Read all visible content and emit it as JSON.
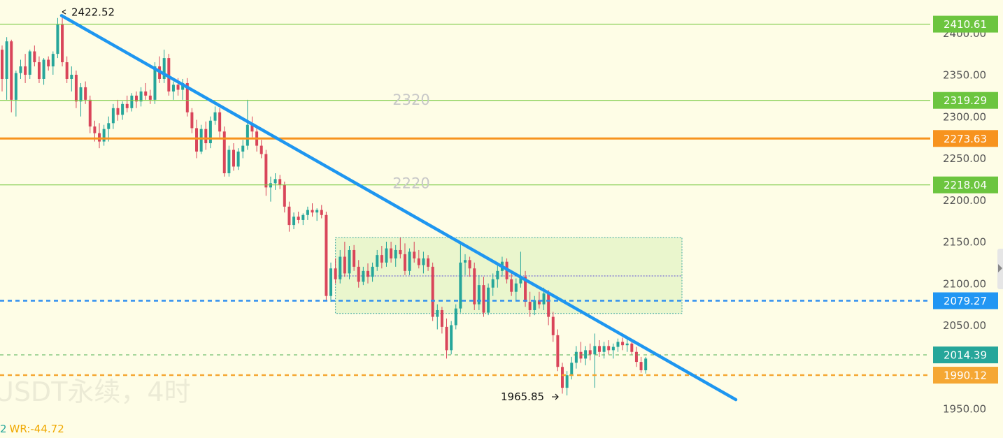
{
  "chart_data": {
    "type": "candlestick",
    "y_axis": {
      "range": [
        1950,
        2425
      ],
      "ticks": [
        "2400.00",
        "2350.00",
        "2300.00",
        "2250.00",
        "2200.00",
        "2150.00",
        "2100.00",
        "2050.00",
        "1950.00"
      ],
      "tick_values": [
        2400,
        2350,
        2300,
        2250,
        2200,
        2150,
        2100,
        2050,
        1950
      ]
    },
    "price_tags": [
      {
        "value": 2410.61,
        "label": "2410.61",
        "color": "#6cc53f",
        "line_style": "solid",
        "line_color": "#7ac943"
      },
      {
        "value": 2319.29,
        "label": "2319.29",
        "color": "#6cc53f",
        "line_style": "solid",
        "line_color": "#7ac943"
      },
      {
        "value": 2273.63,
        "label": "2273.63",
        "color": "#f7931e",
        "line_style": "thick",
        "line_color": "#f7931e"
      },
      {
        "value": 2218.04,
        "label": "2218.04",
        "color": "#6cc53f",
        "line_style": "solid",
        "line_color": "#7ac943"
      },
      {
        "value": 2079.27,
        "label": "2079.27",
        "color": "#2196f3",
        "line_style": "dashed",
        "line_color": "#2f8ff0"
      },
      {
        "value": 2014.39,
        "label": "2014.39",
        "color": "#26a69a",
        "line_style": "dashed-thin",
        "line_color": "#4caf50"
      },
      {
        "value": 1990.12,
        "label": "1990.12",
        "color": "#f5a733",
        "line_style": "dashed",
        "line_color": "#f5a733"
      }
    ],
    "level_labels": [
      {
        "text": "2320",
        "value": 2320
      },
      {
        "text": "2220",
        "value": 2220
      }
    ],
    "annotations": [
      {
        "text": "2422.52",
        "value": 2422.52,
        "kind": "high"
      },
      {
        "text": "1965.85",
        "value": 1965.85,
        "kind": "low"
      }
    ],
    "trendline": {
      "from": 2422.52,
      "to": 1970,
      "color": "#1e96f0"
    },
    "consolidation_box": {
      "top": 2155,
      "bottom": 2064,
      "mid": 2109,
      "color": "#d8f0b8"
    },
    "candles": [
      [
        2380,
        2385,
        2330,
        2345
      ],
      [
        2345,
        2395,
        2320,
        2390
      ],
      [
        2390,
        2392,
        2305,
        2320
      ],
      [
        2320,
        2355,
        2300,
        2352
      ],
      [
        2352,
        2368,
        2345,
        2360
      ],
      [
        2360,
        2375,
        2340,
        2350
      ],
      [
        2350,
        2380,
        2345,
        2378
      ],
      [
        2378,
        2385,
        2360,
        2365
      ],
      [
        2365,
        2372,
        2340,
        2345
      ],
      [
        2345,
        2370,
        2338,
        2368
      ],
      [
        2368,
        2372,
        2355,
        2360
      ],
      [
        2360,
        2378,
        2350,
        2375
      ],
      [
        2375,
        2418,
        2370,
        2410
      ],
      [
        2410,
        2422.52,
        2360,
        2365
      ],
      [
        2365,
        2372,
        2340,
        2345
      ],
      [
        2345,
        2360,
        2330,
        2350
      ],
      [
        2350,
        2355,
        2310,
        2318
      ],
      [
        2318,
        2340,
        2300,
        2335
      ],
      [
        2335,
        2342,
        2315,
        2320
      ],
      [
        2320,
        2325,
        2280,
        2288
      ],
      [
        2288,
        2295,
        2270,
        2280
      ],
      [
        2280,
        2292,
        2262,
        2270
      ],
      [
        2270,
        2290,
        2265,
        2285
      ],
      [
        2285,
        2300,
        2270,
        2292
      ],
      [
        2292,
        2315,
        2285,
        2310
      ],
      [
        2310,
        2320,
        2295,
        2302
      ],
      [
        2302,
        2318,
        2296,
        2315
      ],
      [
        2315,
        2325,
        2305,
        2310
      ],
      [
        2310,
        2328,
        2306,
        2325
      ],
      [
        2325,
        2330,
        2310,
        2318
      ],
      [
        2318,
        2335,
        2312,
        2330
      ],
      [
        2330,
        2340,
        2320,
        2325
      ],
      [
        2325,
        2332,
        2315,
        2320
      ],
      [
        2320,
        2365,
        2315,
        2360
      ],
      [
        2360,
        2372,
        2340,
        2345
      ],
      [
        2345,
        2380,
        2340,
        2370
      ],
      [
        2370,
        2375,
        2325,
        2330
      ],
      [
        2330,
        2342,
        2320,
        2338
      ],
      [
        2338,
        2346,
        2325,
        2332
      ],
      [
        2332,
        2345,
        2320,
        2340
      ],
      [
        2340,
        2346,
        2300,
        2305
      ],
      [
        2305,
        2310,
        2280,
        2286
      ],
      [
        2286,
        2296,
        2250,
        2258
      ],
      [
        2258,
        2290,
        2255,
        2285
      ],
      [
        2285,
        2294,
        2260,
        2268
      ],
      [
        2268,
        2300,
        2262,
        2295
      ],
      [
        2295,
        2312,
        2290,
        2305
      ],
      [
        2305,
        2310,
        2275,
        2282
      ],
      [
        2282,
        2288,
        2228,
        2232
      ],
      [
        2232,
        2265,
        2228,
        2260
      ],
      [
        2260,
        2268,
        2235,
        2240
      ],
      [
        2240,
        2262,
        2236,
        2258
      ],
      [
        2258,
        2272,
        2250,
        2265
      ],
      [
        2265,
        2320,
        2260,
        2290
      ],
      [
        2290,
        2300,
        2275,
        2282
      ],
      [
        2282,
        2288,
        2258,
        2265
      ],
      [
        2265,
        2272,
        2250,
        2255
      ],
      [
        2255,
        2260,
        2205,
        2215
      ],
      [
        2215,
        2228,
        2198,
        2220
      ],
      [
        2220,
        2232,
        2212,
        2225
      ],
      [
        2225,
        2230,
        2213,
        2218
      ],
      [
        2218,
        2222,
        2185,
        2192
      ],
      [
        2192,
        2198,
        2162,
        2170
      ],
      [
        2170,
        2185,
        2165,
        2180
      ],
      [
        2180,
        2186,
        2172,
        2176
      ],
      [
        2176,
        2184,
        2170,
        2182
      ],
      [
        2182,
        2192,
        2176,
        2188
      ],
      [
        2188,
        2196,
        2180,
        2185
      ],
      [
        2185,
        2190,
        2175,
        2188
      ],
      [
        2188,
        2194,
        2178,
        2182
      ],
      [
        2182,
        2186,
        2080,
        2085
      ],
      [
        2085,
        2125,
        2078,
        2118
      ],
      [
        2118,
        2130,
        2100,
        2105
      ],
      [
        2105,
        2140,
        2100,
        2132
      ],
      [
        2132,
        2150,
        2108,
        2112
      ],
      [
        2112,
        2145,
        2105,
        2140
      ],
      [
        2140,
        2146,
        2115,
        2120
      ],
      [
        2120,
        2128,
        2095,
        2102
      ],
      [
        2102,
        2120,
        2098,
        2115
      ],
      [
        2115,
        2124,
        2100,
        2108
      ],
      [
        2108,
        2125,
        2102,
        2120
      ],
      [
        2120,
        2140,
        2115,
        2134
      ],
      [
        2134,
        2145,
        2118,
        2125
      ],
      [
        2125,
        2150,
        2120,
        2142
      ],
      [
        2142,
        2150,
        2125,
        2130
      ],
      [
        2130,
        2146,
        2120,
        2140
      ],
      [
        2140,
        2155,
        2130,
        2135
      ],
      [
        2135,
        2148,
        2110,
        2115
      ],
      [
        2115,
        2142,
        2110,
        2138
      ],
      [
        2138,
        2150,
        2125,
        2130
      ],
      [
        2130,
        2140,
        2118,
        2122
      ],
      [
        2122,
        2138,
        2112,
        2130
      ],
      [
        2130,
        2134,
        2115,
        2120
      ],
      [
        2120,
        2125,
        2055,
        2060
      ],
      [
        2060,
        2075,
        2045,
        2068
      ],
      [
        2068,
        2072,
        2040,
        2048
      ],
      [
        2048,
        2058,
        2010,
        2020
      ],
      [
        2020,
        2055,
        2015,
        2050
      ],
      [
        2050,
        2075,
        2045,
        2070
      ],
      [
        2070,
        2148,
        2065,
        2125
      ],
      [
        2125,
        2135,
        2110,
        2128
      ],
      [
        2128,
        2132,
        2108,
        2118
      ],
      [
        2118,
        2125,
        2068,
        2075
      ],
      [
        2075,
        2110,
        2068,
        2098
      ],
      [
        2098,
        2108,
        2060,
        2065
      ],
      [
        2065,
        2100,
        2062,
        2095
      ],
      [
        2095,
        2112,
        2085,
        2105
      ],
      [
        2105,
        2122,
        2095,
        2115
      ],
      [
        2115,
        2132,
        2108,
        2126
      ],
      [
        2126,
        2130,
        2100,
        2105
      ],
      [
        2105,
        2115,
        2085,
        2090
      ],
      [
        2090,
        2106,
        2080,
        2100
      ],
      [
        2100,
        2138,
        2095,
        2108
      ],
      [
        2108,
        2115,
        2072,
        2078
      ],
      [
        2078,
        2090,
        2060,
        2068
      ],
      [
        2068,
        2085,
        2062,
        2080
      ],
      [
        2080,
        2090,
        2070,
        2075
      ],
      [
        2075,
        2095,
        2068,
        2088
      ],
      [
        2088,
        2092,
        2050,
        2060
      ],
      [
        2060,
        2066,
        2030,
        2038
      ],
      [
        2038,
        2045,
        1995,
        2000
      ],
      [
        2000,
        2005,
        1968,
        1975
      ],
      [
        1975,
        1995,
        1965.85,
        1990
      ],
      [
        1990,
        2012,
        1985,
        2005
      ],
      [
        2005,
        2025,
        1998,
        2018
      ],
      [
        2018,
        2030,
        2005,
        2010
      ],
      [
        2010,
        2025,
        2002,
        2020
      ],
      [
        2020,
        2028,
        2008,
        2015
      ],
      [
        2015,
        2040,
        1975,
        2025
      ],
      [
        2025,
        2032,
        2012,
        2018
      ],
      [
        2018,
        2030,
        2010,
        2025
      ],
      [
        2025,
        2032,
        2015,
        2020
      ],
      [
        2020,
        2028,
        2010,
        2024
      ],
      [
        2024,
        2034,
        2018,
        2030
      ],
      [
        2030,
        2035,
        2020,
        2026
      ],
      [
        2026,
        2036,
        2018,
        2028
      ],
      [
        2028,
        2032,
        2015,
        2018
      ],
      [
        2018,
        2024,
        2000,
        2006
      ],
      [
        2006,
        2012,
        1993,
        1996
      ],
      [
        1996,
        2012,
        1992,
        2010
      ]
    ]
  },
  "watermark": "USDT永续，4时",
  "indicator": {
    "prefix": "2",
    "wr": "WR:-44.72"
  }
}
